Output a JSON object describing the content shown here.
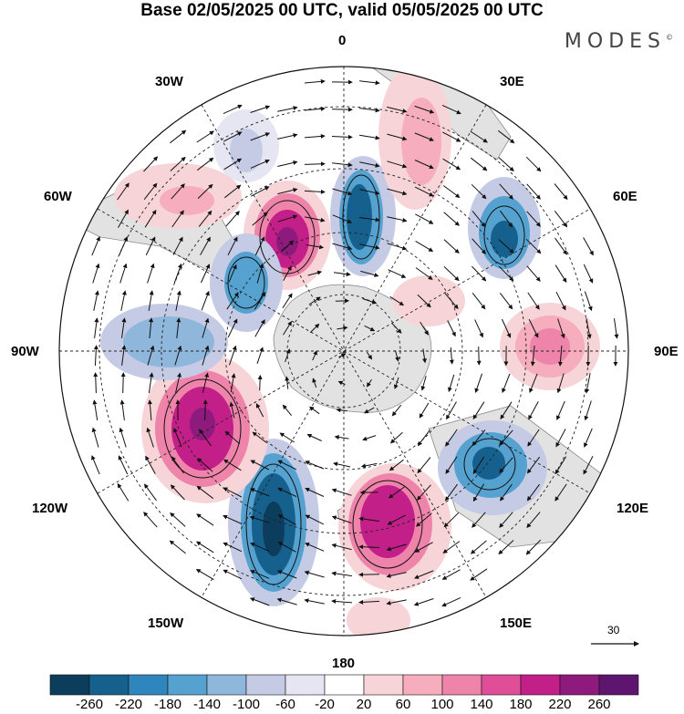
{
  "header": {
    "title": "Base 02/05/2025 00 UTC, valid 05/05/2025 00 UTC"
  },
  "brand": {
    "name": "MODES",
    "mark": "©"
  },
  "longitude_labels": {
    "top": "0",
    "bottom": "180",
    "left": "90W",
    "right": "90E",
    "nw30": "30W",
    "nw60": "60W",
    "sw120": "120W",
    "sw150": "150W",
    "ne30": "30E",
    "ne60": "60E",
    "se120": "120E",
    "se150": "150E"
  },
  "wind_scale": {
    "label": "30"
  },
  "colorbar": {
    "ticks": [
      "-260",
      "-220",
      "-180",
      "-140",
      "-100",
      "-60",
      "-20",
      "20",
      "60",
      "100",
      "140",
      "180",
      "220",
      "260"
    ],
    "colors": [
      "#0d3d5c",
      "#16608e",
      "#2f86bf",
      "#55a2d0",
      "#8fb7dc",
      "#c5cbe5",
      "#e5e6f1",
      "#ffffff",
      "#f7d4d8",
      "#f6aebe",
      "#ef84aa",
      "#e04e98",
      "#c21f88",
      "#8e1a7e",
      "#5d1570"
    ]
  },
  "legend": {
    "feature_colors": {
      "land": "#e3e3e3",
      "coast": "#777777",
      "graticule": "#222222"
    }
  }
}
